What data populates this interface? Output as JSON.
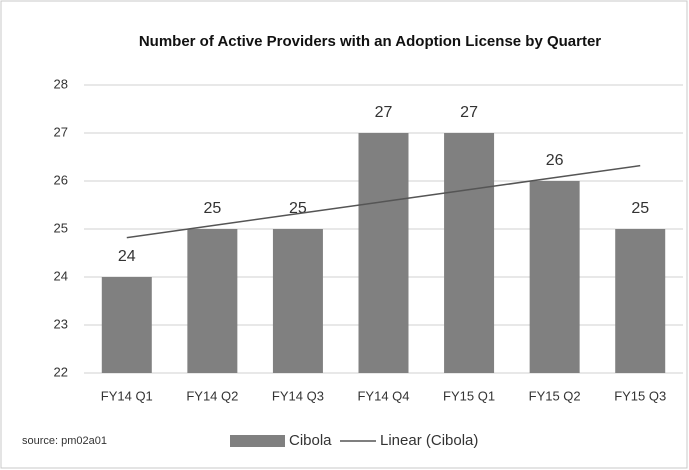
{
  "chart_data": {
    "type": "bar",
    "title": "Number of Active Providers with an Adoption License by Quarter",
    "categories": [
      "FY14 Q1",
      "FY14 Q2",
      "FY14 Q3",
      "FY14 Q4",
      "FY15 Q1",
      "FY15 Q2",
      "FY15 Q3"
    ],
    "series": [
      {
        "name": "Cibola",
        "color": "#808080",
        "values": [
          24,
          25,
          25,
          27,
          27,
          26,
          25
        ]
      }
    ],
    "trendline": {
      "name": "Linear (Cibola)",
      "color": "#555555",
      "values": [
        24.82,
        25.07,
        25.32,
        25.57,
        25.82,
        26.07,
        26.32
      ]
    },
    "ylim": [
      22,
      28
    ],
    "yticks": [
      22,
      23,
      24,
      25,
      26,
      27,
      28
    ],
    "grid": true,
    "source": "source:  pm02a01"
  }
}
